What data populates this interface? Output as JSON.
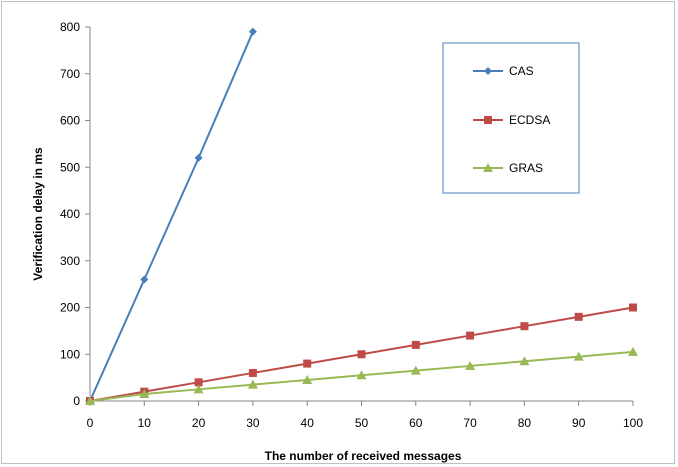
{
  "chart_data": {
    "type": "line",
    "xlabel": "The number of received messages",
    "ylabel": "Verification delay in ms",
    "xlim": [
      0,
      100
    ],
    "ylim": [
      0,
      800
    ],
    "x_ticks": [
      0,
      10,
      20,
      30,
      40,
      50,
      60,
      70,
      80,
      90,
      100
    ],
    "y_ticks": [
      0,
      100,
      200,
      300,
      400,
      500,
      600,
      700,
      800
    ],
    "grid": false,
    "legend_position": "top-right",
    "series": [
      {
        "name": "CAS",
        "color": "#4a7ebb",
        "marker": "diamond",
        "x": [
          0,
          10,
          20,
          30
        ],
        "values": [
          0,
          260,
          520,
          790
        ]
      },
      {
        "name": "ECDSA",
        "color": "#be4b48",
        "marker": "square",
        "x": [
          0,
          10,
          20,
          30,
          40,
          50,
          60,
          70,
          80,
          90,
          100
        ],
        "values": [
          0,
          20,
          40,
          60,
          80,
          100,
          120,
          140,
          160,
          180,
          200
        ]
      },
      {
        "name": "GRAS",
        "color": "#98b954",
        "marker": "triangle",
        "x": [
          0,
          10,
          20,
          30,
          40,
          50,
          60,
          70,
          80,
          90,
          100
        ],
        "values": [
          0,
          15,
          25,
          35,
          45,
          55,
          65,
          75,
          85,
          95,
          105
        ]
      }
    ]
  }
}
